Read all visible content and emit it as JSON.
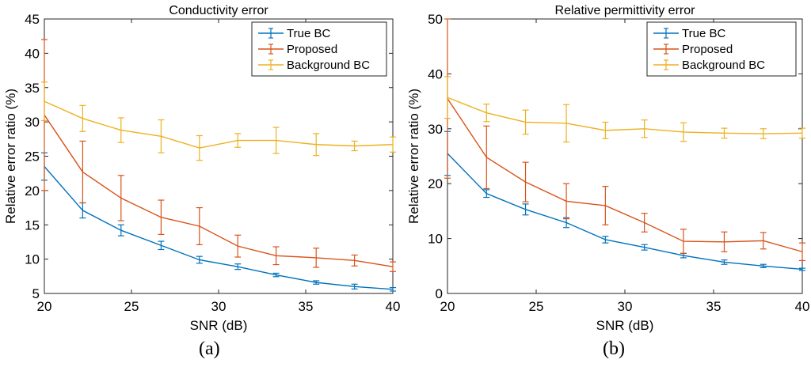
{
  "chart_data": [
    {
      "type": "line",
      "title": "Conductivity error",
      "xlabel": "SNR (dB)",
      "ylabel": "Relative error ratio (%)",
      "panel_label": "(a)",
      "xlim": [
        20,
        40
      ],
      "ylim": [
        5,
        45
      ],
      "xticks": [
        "20",
        "25",
        "30",
        "35",
        "40"
      ],
      "yticks": [
        "5",
        "10",
        "15",
        "20",
        "25",
        "30",
        "35",
        "40",
        "45"
      ],
      "x": [
        20,
        22.2,
        24.4,
        26.7,
        28.9,
        31.1,
        33.3,
        35.6,
        37.8,
        40
      ],
      "legend_position": "top-right",
      "series": [
        {
          "name": "True BC",
          "color": "#0072BD",
          "values": [
            23.5,
            17.1,
            14.2,
            12.0,
            9.9,
            8.9,
            7.7,
            6.6,
            6.0,
            5.6
          ],
          "err": [
            2.0,
            1.1,
            0.8,
            0.6,
            0.5,
            0.4,
            0.25,
            0.25,
            0.35,
            0.25
          ]
        },
        {
          "name": "Proposed",
          "color": "#D95319",
          "values": [
            31.0,
            22.7,
            18.9,
            16.1,
            14.8,
            11.9,
            10.5,
            10.2,
            9.8,
            8.9
          ],
          "err": [
            11.0,
            4.5,
            3.3,
            2.5,
            2.7,
            1.6,
            1.3,
            1.4,
            0.8,
            0.7
          ]
        },
        {
          "name": "Background BC",
          "color": "#EDB120",
          "values": [
            33.0,
            30.5,
            28.8,
            27.9,
            26.2,
            27.3,
            27.3,
            26.7,
            26.5,
            26.7
          ],
          "err": [
            2.8,
            1.9,
            1.8,
            2.4,
            1.8,
            1.0,
            1.9,
            1.6,
            0.7,
            1.1
          ]
        }
      ]
    },
    {
      "type": "line",
      "title": "Relative permittivity error",
      "xlabel": "SNR (dB)",
      "ylabel": "Relative error ratio (%)",
      "panel_label": "(b)",
      "xlim": [
        20,
        40
      ],
      "ylim": [
        0,
        50
      ],
      "xticks": [
        "20",
        "25",
        "30",
        "35",
        "40"
      ],
      "yticks": [
        "0",
        "10",
        "20",
        "30",
        "40",
        "50"
      ],
      "x": [
        20,
        22.2,
        24.4,
        26.7,
        28.9,
        31.1,
        33.3,
        35.6,
        37.8,
        40
      ],
      "legend_position": "top-right",
      "series": [
        {
          "name": "True BC",
          "color": "#0072BD",
          "values": [
            25.5,
            18.2,
            15.3,
            12.9,
            9.8,
            8.4,
            6.9,
            5.7,
            5.0,
            4.4
          ],
          "err": [
            4.0,
            0.7,
            1.0,
            0.9,
            0.6,
            0.5,
            0.4,
            0.4,
            0.3,
            0.2
          ]
        },
        {
          "name": "Proposed",
          "color": "#D95319",
          "values": [
            35.5,
            24.8,
            20.3,
            16.8,
            16.0,
            12.9,
            9.5,
            9.4,
            9.6,
            7.6
          ],
          "err": [
            14.5,
            5.7,
            3.6,
            3.2,
            3.5,
            1.7,
            2.2,
            1.8,
            1.5,
            1.6
          ]
        },
        {
          "name": "Background BC",
          "color": "#EDB120",
          "values": [
            35.7,
            32.9,
            31.2,
            31.0,
            29.7,
            30.0,
            29.4,
            29.2,
            29.1,
            29.2
          ],
          "err": [
            3.8,
            1.6,
            2.2,
            3.4,
            1.5,
            1.6,
            1.7,
            0.9,
            0.9,
            0.9
          ]
        }
      ]
    }
  ]
}
